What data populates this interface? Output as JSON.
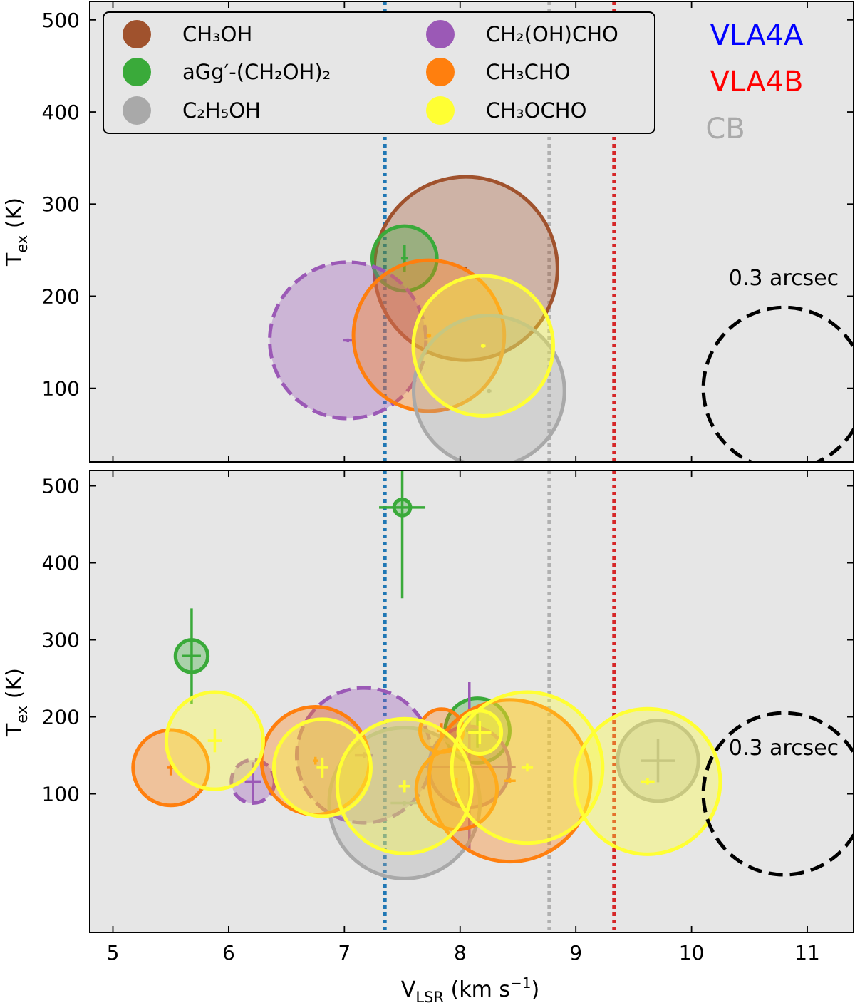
{
  "colors": {
    "panel_bg": "#e6e6e6",
    "CH3OH": "#a0522d",
    "aGg'-(CH2OH)2": "#3aaa3a",
    "C2H5OH": "#a9a9a9",
    "CH2(OH)CHO": "#9b59b6",
    "CH3CHO": "#ff7f0e",
    "CH3OCHO": "#ffff33",
    "VLA4A": "#1f77b4",
    "VLA4B": "#d62728",
    "CB": "#b0b0b0"
  },
  "legend": {
    "entries": [
      {
        "key": "CH3OH",
        "label": "CH₃OH"
      },
      {
        "key": "aGg'-(CH2OH)2",
        "label": "aGg′-(CH₂OH)₂"
      },
      {
        "key": "C2H5OH",
        "label": "C₂H₅OH"
      },
      {
        "key": "CH2(OH)CHO",
        "label": "CH₂(OH)CHO"
      },
      {
        "key": "CH3CHO",
        "label": "CH₃CHO"
      },
      {
        "key": "CH3OCHO",
        "label": "CH₃OCHO"
      }
    ]
  },
  "sources": [
    {
      "name": "VLA4A",
      "label": "VLA4A",
      "vlsr": 7.35
    },
    {
      "name": "VLA4B",
      "label": "VLA4B",
      "vlsr": 9.33
    },
    {
      "name": "CB",
      "label": "CB",
      "vlsr": 8.77
    }
  ],
  "scale_label": "0.3 arcsec",
  "chart_data": [
    {
      "type": "scatter",
      "panel": "top",
      "xlabel": "",
      "ylabel": "T_ex (K)",
      "xlim": [
        4.8,
        11.4
      ],
      "ylim": [
        20,
        520
      ],
      "xticks": [
        5,
        6,
        7,
        8,
        9,
        10,
        11
      ],
      "yticks": [
        100,
        200,
        300,
        400,
        500
      ],
      "scale_circle": {
        "x": 10.8,
        "y": 100,
        "size_arcsec": 0.3
      },
      "points": [
        {
          "species": "CH3OH",
          "x": 8.05,
          "y": 230,
          "xerr": 0.01,
          "yerr": 2,
          "size_arcsec": 0.34,
          "dashed": false
        },
        {
          "species": "aGg'-(CH2OH)2",
          "x": 7.52,
          "y": 241,
          "xerr": 0.03,
          "yerr": 15,
          "size_arcsec": 0.12,
          "dashed": false
        },
        {
          "species": "CH2(OH)CHO",
          "x": 7.03,
          "y": 152,
          "xerr": 0.04,
          "yerr": 2,
          "size_arcsec": 0.29,
          "dashed": true
        },
        {
          "species": "CH3CHO",
          "x": 7.73,
          "y": 157,
          "xerr": 0.02,
          "yerr": 2,
          "size_arcsec": 0.28,
          "dashed": false
        },
        {
          "species": "C2H5OH",
          "x": 8.25,
          "y": 97,
          "xerr": 0.02,
          "yerr": 2,
          "size_arcsec": 0.28,
          "dashed": false
        },
        {
          "species": "CH3OCHO",
          "x": 8.2,
          "y": 146,
          "xerr": 0.02,
          "yerr": 2,
          "size_arcsec": 0.26,
          "dashed": false
        }
      ]
    },
    {
      "type": "scatter",
      "panel": "bottom",
      "xlabel": "V_LSR (km s⁻¹)",
      "ylabel": "T_ex (K)",
      "xlim": [
        4.8,
        11.4
      ],
      "ylim": [
        -80,
        520
      ],
      "xticks": [
        5,
        6,
        7,
        8,
        9,
        10,
        11
      ],
      "yticks": [
        100,
        200,
        300,
        400,
        500
      ],
      "scale_circle": {
        "x": 10.8,
        "y": 100,
        "size_arcsec": 0.3
      },
      "points": [
        {
          "species": "aGg'-(CH2OH)2",
          "x": 7.5,
          "y": 472,
          "xerr": 0.2,
          "yerr": 118,
          "size_arcsec": 0.03,
          "dashed": false
        },
        {
          "species": "aGg'-(CH2OH)2",
          "x": 5.68,
          "y": 279,
          "xerr": 0.08,
          "yerr": 62,
          "size_arcsec": 0.06,
          "dashed": false
        },
        {
          "species": "aGg'-(CH2OH)2",
          "x": 8.15,
          "y": 182,
          "xerr": 0.1,
          "yerr": 22,
          "size_arcsec": 0.12,
          "dashed": false
        },
        {
          "species": "CH2(OH)CHO",
          "x": 7.17,
          "y": 150,
          "xerr": 0.08,
          "yerr": 4,
          "size_arcsec": 0.25,
          "dashed": true
        },
        {
          "species": "CH2(OH)CHO",
          "x": 6.21,
          "y": 116,
          "xerr": 0.07,
          "yerr": 25,
          "size_arcsec": 0.08,
          "dashed": true
        },
        {
          "species": "CH2(OH)CHO",
          "x": 8.08,
          "y": 135,
          "xerr": 0.4,
          "yerr": 110,
          "size_arcsec": 0.15,
          "dashed": false
        },
        {
          "species": "C2H5OH",
          "x": 7.52,
          "y": 88,
          "xerr": 0.12,
          "yerr": 3,
          "size_arcsec": 0.28,
          "dashed": false
        },
        {
          "species": "C2H5OH",
          "x": 9.71,
          "y": 143,
          "xerr": 0.15,
          "yerr": 28,
          "size_arcsec": 0.15,
          "dashed": false
        },
        {
          "species": "CH3CHO",
          "x": 5.5,
          "y": 134,
          "xerr": 0.03,
          "yerr": 10,
          "size_arcsec": 0.14,
          "dashed": false
        },
        {
          "species": "CH3CHO",
          "x": 6.75,
          "y": 143,
          "xerr": 0.02,
          "yerr": 5,
          "size_arcsec": 0.2,
          "dashed": false
        },
        {
          "species": "CH3CHO",
          "x": 7.84,
          "y": 182,
          "xerr": 0.04,
          "yerr": 10,
          "size_arcsec": 0.08,
          "dashed": false
        },
        {
          "species": "CH3CHO",
          "x": 7.97,
          "y": 106,
          "xerr": 0.03,
          "yerr": 15,
          "size_arcsec": 0.15,
          "dashed": false
        },
        {
          "species": "CH3CHO",
          "x": 8.43,
          "y": 117,
          "xerr": 0.05,
          "yerr": 3,
          "size_arcsec": 0.3,
          "dashed": false
        },
        {
          "species": "CH3OCHO",
          "x": 5.88,
          "y": 169,
          "xerr": 0.06,
          "yerr": 15,
          "size_arcsec": 0.18,
          "dashed": false
        },
        {
          "species": "CH3OCHO",
          "x": 6.81,
          "y": 134,
          "xerr": 0.05,
          "yerr": 13,
          "size_arcsec": 0.18,
          "dashed": false
        },
        {
          "species": "CH3OCHO",
          "x": 7.52,
          "y": 110,
          "xerr": 0.05,
          "yerr": 8,
          "size_arcsec": 0.25,
          "dashed": false
        },
        {
          "species": "CH3OCHO",
          "x": 8.17,
          "y": 180,
          "xerr": 0.1,
          "yerr": 15,
          "size_arcsec": 0.08,
          "dashed": false
        },
        {
          "species": "CH3OCHO",
          "x": 8.58,
          "y": 134,
          "xerr": 0.05,
          "yerr": 5,
          "size_arcsec": 0.28,
          "dashed": false
        },
        {
          "species": "CH3OCHO",
          "x": 9.62,
          "y": 116,
          "xerr": 0.06,
          "yerr": 4,
          "size_arcsec": 0.27,
          "dashed": false
        }
      ]
    }
  ]
}
